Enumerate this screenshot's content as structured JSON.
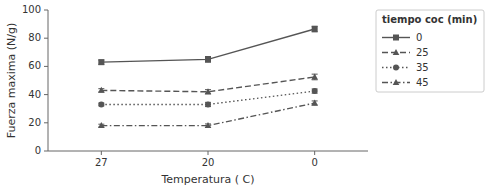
{
  "chart_data": {
    "type": "line",
    "xlabel": "Temperatura ( C)",
    "ylabel": "Fuerza maxima (N/g)",
    "categories": [
      "27",
      "20",
      "0"
    ],
    "ylim": [
      0,
      100
    ],
    "yticks": [
      0,
      20,
      40,
      60,
      80,
      100
    ],
    "grid": false,
    "legend": "right",
    "legend_title": "tiempo coc (min)",
    "series": [
      {
        "name": "0",
        "color": "#555555",
        "marker": "square",
        "line_style": "solid",
        "values": [
          63.0,
          65.0,
          86.5
        ],
        "errors": [
          1.5,
          2.0,
          2.0
        ]
      },
      {
        "name": "25",
        "color": "#555555",
        "marker": "triangle",
        "line_style": "dashed",
        "values": [
          43.0,
          42.0,
          52.5
        ],
        "errors": [
          1.2,
          1.5,
          2.0
        ]
      },
      {
        "name": "35",
        "color": "#555555",
        "marker": "circle",
        "line_style": "dotted",
        "values": [
          33.0,
          33.0,
          42.5
        ],
        "errors": [
          1.0,
          1.5,
          1.5
        ]
      },
      {
        "name": "45",
        "color": "#555555",
        "marker": "triangle",
        "line_style": "dashdot",
        "values": [
          18.0,
          18.0,
          34.0
        ],
        "errors": [
          1.0,
          1.2,
          1.5
        ]
      }
    ]
  }
}
